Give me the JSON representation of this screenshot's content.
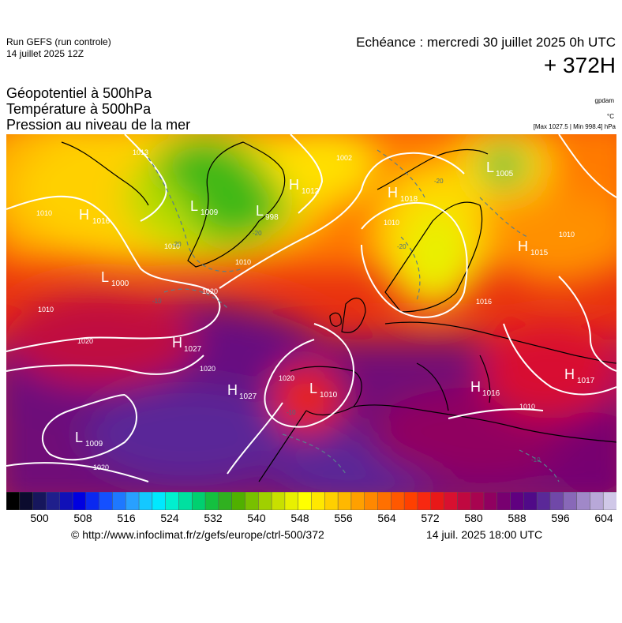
{
  "header": {
    "run_title": "Run GEFS (run controle)",
    "run_date": "14 juillet 2025 12Z",
    "echeance": "Echéance : mercredi 30 juillet 2025 0h UTC",
    "lead_time": "+ 372H"
  },
  "parameters": [
    "Géopotentiel à 500hPa",
    "Température à 500hPa",
    "Pression au niveau de la mer"
  ],
  "units": {
    "geopotential": "gpdam",
    "temperature": "°C",
    "pressure": "[Max 1027.5 | Min 998.4] hPa"
  },
  "map": {
    "region": "Europe / North Atlantic",
    "pressure_centers": [
      {
        "type": "H",
        "value": "1016"
      },
      {
        "type": "L",
        "value": "1000"
      },
      {
        "type": "L",
        "value": "1009"
      },
      {
        "type": "L",
        "value": "998"
      },
      {
        "type": "H",
        "value": "1012"
      },
      {
        "type": "H",
        "value": "1018"
      },
      {
        "type": "L",
        "value": "1005"
      },
      {
        "type": "H",
        "value": "1015"
      },
      {
        "type": "H",
        "value": "1027"
      },
      {
        "type": "H",
        "value": "1027"
      },
      {
        "type": "L",
        "value": "1010"
      },
      {
        "type": "H",
        "value": "1016"
      },
      {
        "type": "H",
        "value": "1017"
      },
      {
        "type": "L",
        "value": "1009"
      }
    ],
    "isobar_labels": [
      "1010",
      "1020",
      "1020",
      "1010",
      "1020",
      "1010",
      "1010",
      "1010",
      "1002",
      "1013",
      "1020",
      "1010",
      "1016",
      "1010",
      "1020"
    ],
    "temperature_labels": [
      "-20",
      "-20",
      "-20",
      "-10",
      "-10",
      "-10",
      "-20"
    ]
  },
  "colorbar": {
    "labels": [
      "500",
      "508",
      "516",
      "524",
      "532",
      "540",
      "548",
      "556",
      "564",
      "572",
      "580",
      "588",
      "596",
      "604"
    ],
    "colors": [
      "#000000",
      "#0b0b2e",
      "#16165c",
      "#1f1f8c",
      "#1010b8",
      "#0000e0",
      "#0a28f0",
      "#1450ff",
      "#1e78ff",
      "#28a0ff",
      "#14c8ff",
      "#00e8ff",
      "#00f0d0",
      "#00e0a0",
      "#00d070",
      "#14c040",
      "#30b020",
      "#50b000",
      "#78c000",
      "#a0d000",
      "#c8e000",
      "#e8f000",
      "#ffff00",
      "#ffe800",
      "#ffd000",
      "#ffb800",
      "#ffa000",
      "#ff8800",
      "#ff7000",
      "#ff5800",
      "#ff4000",
      "#f82810",
      "#e81818",
      "#d81030",
      "#c00840",
      "#a80450",
      "#900060",
      "#780070",
      "#600080",
      "#500a88",
      "#5a2898",
      "#7048a8",
      "#8868b8",
      "#a088c8",
      "#b8a8d8",
      "#d0c8e8"
    ]
  },
  "footer": {
    "source": "© http://www.infoclimat.fr/z/gefs/europe/ctrl-500/372",
    "run_time": "14 juil. 2025 18:00 UTC"
  }
}
